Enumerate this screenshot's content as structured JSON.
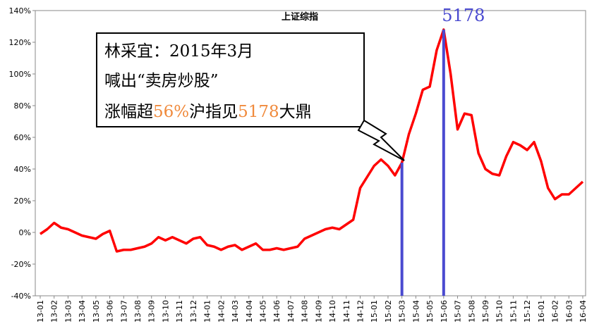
{
  "chart_data": {
    "type": "line",
    "title": "上证综指",
    "categories": [
      "13-01",
      null,
      "13-02",
      null,
      "13-03",
      null,
      "13-04",
      null,
      "13-05",
      null,
      "13-06",
      null,
      "13-07",
      null,
      "13-08",
      null,
      "13-09",
      null,
      "13-10",
      null,
      "13-11",
      null,
      "13-12",
      null,
      "14-01",
      null,
      "14-02",
      null,
      "14-03",
      null,
      "14-04",
      null,
      "14-05",
      null,
      "14-06",
      null,
      "14-07",
      null,
      "14-08",
      null,
      "14-09",
      null,
      "14-10",
      null,
      "14-11",
      null,
      "14-12",
      null,
      "15-01",
      null,
      "15-02",
      null,
      "15-03",
      null,
      "15-04",
      null,
      "15-05",
      null,
      "15-06",
      null,
      "15-07",
      null,
      "15-08",
      null,
      "15-09",
      null,
      "15-10",
      null,
      "15-11",
      null,
      "15-12",
      null,
      "16-01",
      null,
      "16-02",
      null,
      "16-03",
      null,
      "16-04"
    ],
    "series": [
      {
        "name": "上证综指",
        "color": "#ff0000",
        "values": [
          -1,
          2,
          6,
          3,
          2,
          0,
          -2,
          -3,
          -4,
          -1,
          1,
          -12,
          -11,
          -11,
          -10,
          -9,
          -7,
          -3,
          -5,
          -3,
          -5,
          -7,
          -4,
          -3,
          -8,
          -9,
          -11,
          -9,
          -8,
          -11,
          -9,
          -7,
          -11,
          -11,
          -10,
          -11,
          -10,
          -9,
          -4,
          -2,
          0,
          2,
          3,
          2,
          5,
          8,
          28,
          35,
          42,
          46,
          42,
          36,
          44,
          62,
          75,
          90,
          92,
          115,
          128,
          100,
          65,
          75,
          74,
          50,
          40,
          37,
          36,
          48,
          57,
          55,
          52,
          57,
          45,
          28,
          21,
          24,
          24,
          28,
          32
        ]
      }
    ],
    "ylim": [
      -40,
      140
    ],
    "yticks": [
      {
        "value": -40,
        "label": "-40%"
      },
      {
        "value": -20,
        "label": "-20%"
      },
      {
        "value": 0,
        "label": "0%"
      },
      {
        "value": 20,
        "label": "20%"
      },
      {
        "value": 40,
        "label": "40%"
      },
      {
        "value": 60,
        "label": "60%"
      },
      {
        "value": 80,
        "label": "80%"
      },
      {
        "value": 100,
        "label": "100%"
      },
      {
        "value": 120,
        "label": "120%"
      },
      {
        "value": 140,
        "label": "140%"
      }
    ],
    "highlight_color": "#4a4ad0",
    "peak_label": "5178",
    "callout": {
      "line1": "林采宜：2015年3月",
      "line2": "喊出“卖房炒股”",
      "line3": [
        "涨幅超",
        "56%",
        "沪指见",
        "5178",
        "大鼎"
      ]
    }
  }
}
